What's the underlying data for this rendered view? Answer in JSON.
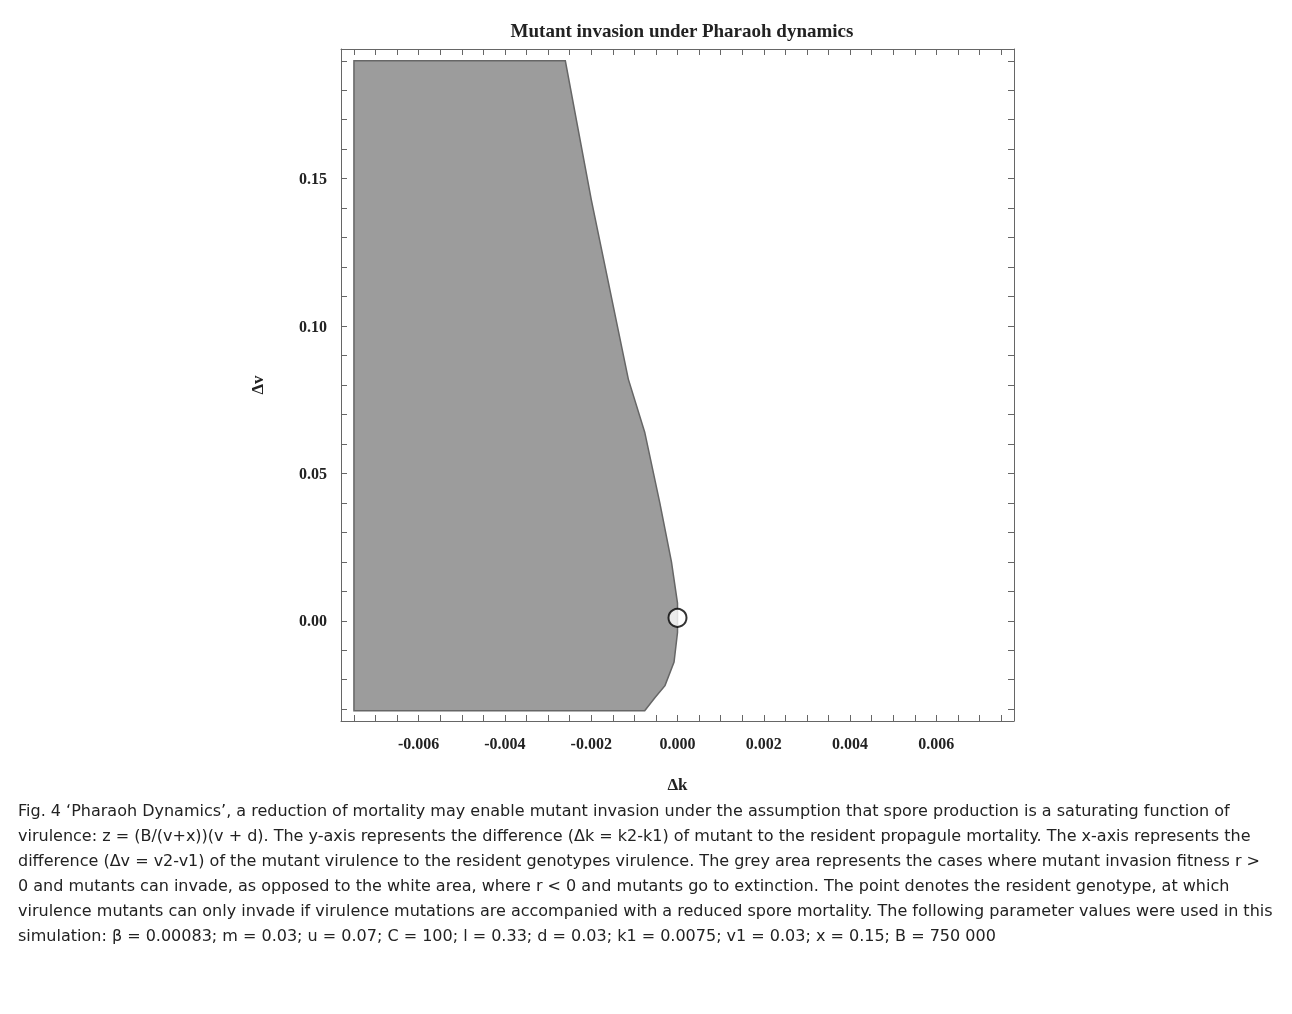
{
  "chart_data": {
    "type": "area",
    "title": "Mutant invasion under Pharaoh dynamics",
    "xlabel": "Δk",
    "ylabel": "Δv",
    "xlim": [
      -0.0078,
      0.0078
    ],
    "ylim": [
      -0.034,
      0.194
    ],
    "xticks": [
      {
        "value": -0.0075,
        "label": null
      },
      {
        "value": -0.007,
        "label": null
      },
      {
        "value": -0.0065,
        "label": null
      },
      {
        "value": -0.006,
        "label": "-0.006"
      },
      {
        "value": -0.0055,
        "label": null
      },
      {
        "value": -0.005,
        "label": null
      },
      {
        "value": -0.0045,
        "label": null
      },
      {
        "value": -0.004,
        "label": "-0.004"
      },
      {
        "value": -0.0035,
        "label": null
      },
      {
        "value": -0.003,
        "label": null
      },
      {
        "value": -0.0025,
        "label": null
      },
      {
        "value": -0.002,
        "label": "-0.002"
      },
      {
        "value": -0.0015,
        "label": null
      },
      {
        "value": -0.001,
        "label": null
      },
      {
        "value": -0.0005,
        "label": null
      },
      {
        "value": 0,
        "label": "0.000"
      },
      {
        "value": 0.0005,
        "label": null
      },
      {
        "value": 0.001,
        "label": null
      },
      {
        "value": 0.0015,
        "label": null
      },
      {
        "value": 0.002,
        "label": "0.002"
      },
      {
        "value": 0.0025,
        "label": null
      },
      {
        "value": 0.003,
        "label": null
      },
      {
        "value": 0.0035,
        "label": null
      },
      {
        "value": 0.004,
        "label": "0.004"
      },
      {
        "value": 0.0045,
        "label": null
      },
      {
        "value": 0.005,
        "label": null
      },
      {
        "value": 0.0055,
        "label": null
      },
      {
        "value": 0.006,
        "label": "0.006"
      },
      {
        "value": 0.0065,
        "label": null
      },
      {
        "value": 0.007,
        "label": null
      },
      {
        "value": 0.0075,
        "label": null
      }
    ],
    "yticks": [
      {
        "value": -0.03,
        "label": null
      },
      {
        "value": -0.02,
        "label": null
      },
      {
        "value": -0.01,
        "label": null
      },
      {
        "value": 0,
        "label": "0.00"
      },
      {
        "value": 0.01,
        "label": null
      },
      {
        "value": 0.02,
        "label": null
      },
      {
        "value": 0.03,
        "label": null
      },
      {
        "value": 0.04,
        "label": null
      },
      {
        "value": 0.05,
        "label": "0.05"
      },
      {
        "value": 0.06,
        "label": null
      },
      {
        "value": 0.07,
        "label": null
      },
      {
        "value": 0.08,
        "label": null
      },
      {
        "value": 0.09,
        "label": null
      },
      {
        "value": 0.1,
        "label": "0.10"
      },
      {
        "value": 0.11,
        "label": null
      },
      {
        "value": 0.12,
        "label": null
      },
      {
        "value": 0.13,
        "label": null
      },
      {
        "value": 0.14,
        "label": null
      },
      {
        "value": 0.15,
        "label": "0.15"
      },
      {
        "value": 0.16,
        "label": null
      },
      {
        "value": 0.17,
        "label": null
      },
      {
        "value": 0.18,
        "label": null
      },
      {
        "value": 0.19,
        "label": null
      }
    ],
    "series": [
      {
        "color": "#9c9c9c",
        "x": [
          -0.0075,
          -0.0026,
          -0.002,
          -0.00114,
          -0.00076,
          -0.00041,
          -0.00014,
          0,
          0,
          -8e-05,
          -0.00029,
          -0.00052,
          -0.00076,
          -0.0075
        ],
        "values": [
          0.19,
          0.19,
          0.143,
          0.082,
          0.064,
          0.04,
          0.02,
          0.006,
          -0.004,
          -0.014,
          -0.022,
          -0.026,
          -0.0305,
          -0.0305
        ]
      },
      {
        "type": "scatter",
        "color": "#000000",
        "marker": "circle",
        "x": [
          0
        ],
        "values": [
          0.001
        ]
      }
    ],
    "grid": false,
    "annotations": [
      "Fig. 4 ‘Pharaoh Dynamics’, a reduction of mortality may enable mutant invasion under the assumption that spore production is a saturating function of virulence: z = (B/(v+x))(v + d). The y-axis represents the difference (Δk = k2-k1) of mutant to the resident propagule mortality. The x-axis represents the difference (Δv = v2-v1) of the mutant virulence to the resident genotypes virulence. The grey area represents the cases where mutant invasion fitness r > 0 and mutants can invade, as opposed to the white area, where r < 0 and mutants go to extinction. The point denotes the resident genotype, at which virulence mutants can only invade if virulence mutations are accompanied with a reduced spore mortality. The following parameter values were used in this simulation: β = 0.00083; m = 0.03; u = 0.07; C = 100; l = 0.33; d = 0.03; k1 = 0.0075; v1 = 0.03; x = 0.15; B = 750 000"
    ]
  }
}
